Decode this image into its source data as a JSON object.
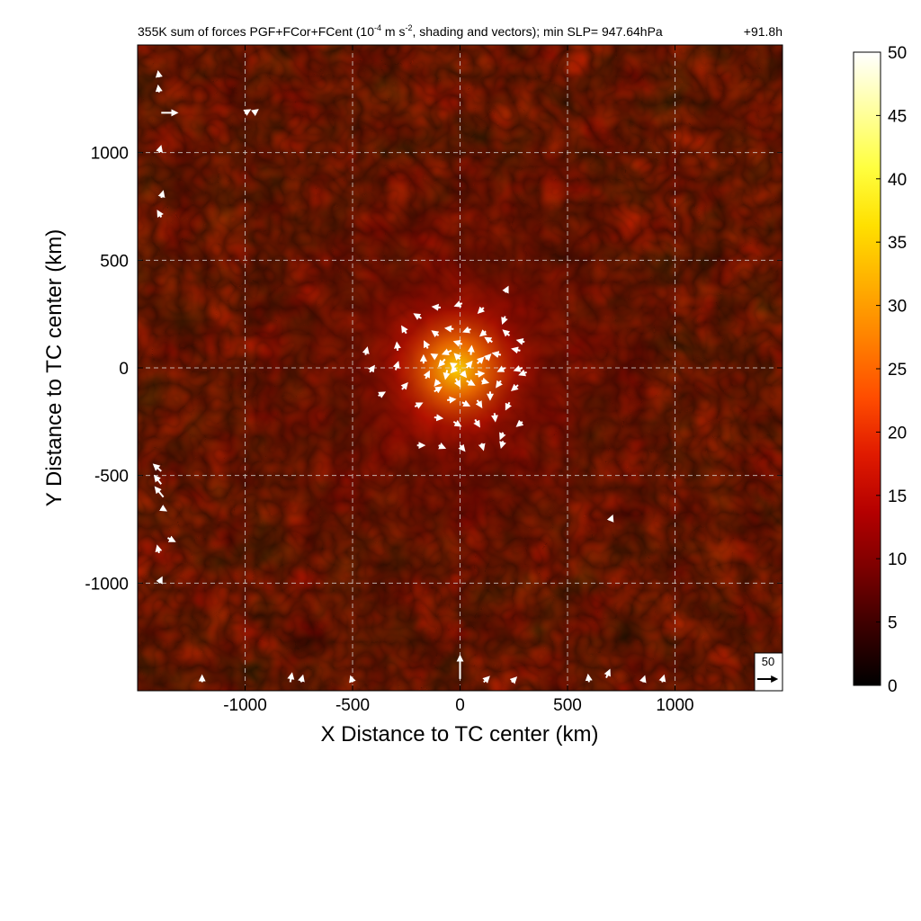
{
  "chart_data": {
    "type": "heatmap",
    "title": "355K sum of forces PGF+FCor+FCent (10",
    "title_exponent": "-4",
    "title_unit_rest": " m s",
    "title_unit_exponent": "-2",
    "title_tail": ", shading and vectors); min SLP= 947.64hPa",
    "time_label": "+91.8h",
    "xlabel": "X Distance to TC center (km)",
    "ylabel": "Y Distance to TC center (km)",
    "xlim": [
      -1500,
      1500
    ],
    "ylim": [
      -1500,
      1500
    ],
    "xticks": [
      -1000,
      -500,
      0,
      500,
      1000
    ],
    "xtick_labels": [
      "-1000",
      "-500",
      "0",
      "500",
      "1000"
    ],
    "yticks": [
      -1000,
      -500,
      0,
      500,
      1000
    ],
    "ytick_labels": [
      "-1000",
      "-500",
      "0",
      "500",
      "1000"
    ],
    "grid": true,
    "colorbar": {
      "range": [
        0,
        50
      ],
      "ticks": [
        0,
        5,
        10,
        15,
        20,
        25,
        30,
        35,
        40,
        45,
        50
      ],
      "tick_labels": [
        "0",
        "5",
        "10",
        "15",
        "20",
        "25",
        "30",
        "35",
        "40",
        "45",
        "50"
      ],
      "colormap": [
        "#000000",
        "#3a0000",
        "#7a0000",
        "#b40000",
        "#e01a00",
        "#ff4d00",
        "#ff8000",
        "#ffb000",
        "#ffe000",
        "#ffff40",
        "#ffffa0",
        "#ffffff"
      ]
    },
    "reference_vector": {
      "value": 50,
      "label": "50"
    },
    "vectors": [
      {
        "x": 10,
        "y": 110,
        "u": -18,
        "v": 6
      },
      {
        "x": -40,
        "y": 80,
        "u": -20,
        "v": -8
      },
      {
        "x": -70,
        "y": 40,
        "u": -14,
        "v": -16
      },
      {
        "x": -60,
        "y": -10,
        "u": -4,
        "v": -20
      },
      {
        "x": -20,
        "y": -50,
        "u": 10,
        "v": -18
      },
      {
        "x": 30,
        "y": -60,
        "u": 18,
        "v": -10
      },
      {
        "x": 70,
        "y": -30,
        "u": 20,
        "v": 2
      },
      {
        "x": 80,
        "y": 20,
        "u": 14,
        "v": 14
      },
      {
        "x": 50,
        "y": 60,
        "u": 2,
        "v": 20
      },
      {
        "x": 0,
        "y": 40,
        "u": -12,
        "v": 12
      },
      {
        "x": -20,
        "y": 0,
        "u": -10,
        "v": -10
      },
      {
        "x": 10,
        "y": -20,
        "u": 8,
        "v": -10
      },
      {
        "x": 150,
        "y": 120,
        "u": -16,
        "v": 10
      },
      {
        "x": 190,
        "y": 60,
        "u": -18,
        "v": 4
      },
      {
        "x": 210,
        "y": 0,
        "u": -16,
        "v": -8
      },
      {
        "x": 190,
        "y": -60,
        "u": -10,
        "v": -14
      },
      {
        "x": 140,
        "y": -110,
        "u": 0,
        "v": -18
      },
      {
        "x": 80,
        "y": -150,
        "u": 10,
        "v": -16
      },
      {
        "x": 10,
        "y": -160,
        "u": 16,
        "v": -8
      },
      {
        "x": -60,
        "y": -150,
        "u": 18,
        "v": 2
      },
      {
        "x": -120,
        "y": -110,
        "u": 16,
        "v": 10
      },
      {
        "x": -160,
        "y": -50,
        "u": 8,
        "v": 16
      },
      {
        "x": -170,
        "y": 20,
        "u": 0,
        "v": 18
      },
      {
        "x": -150,
        "y": 90,
        "u": -8,
        "v": 16
      },
      {
        "x": -100,
        "y": 150,
        "u": -14,
        "v": 10
      },
      {
        "x": -30,
        "y": 180,
        "u": -18,
        "v": 2
      },
      {
        "x": 50,
        "y": 180,
        "u": -16,
        "v": -6
      },
      {
        "x": 120,
        "y": 170,
        "u": -12,
        "v": -10
      },
      {
        "x": 230,
        "y": 150,
        "u": -14,
        "v": 12
      },
      {
        "x": 280,
        "y": 80,
        "u": -18,
        "v": 4
      },
      {
        "x": 290,
        "y": 0,
        "u": -18,
        "v": -6
      },
      {
        "x": 270,
        "y": -80,
        "u": -14,
        "v": -12
      },
      {
        "x": 230,
        "y": -160,
        "u": -8,
        "v": -16
      },
      {
        "x": 160,
        "y": -210,
        "u": 2,
        "v": -18
      },
      {
        "x": 70,
        "y": -240,
        "u": 10,
        "v": -16
      },
      {
        "x": -30,
        "y": -250,
        "u": 16,
        "v": -10
      },
      {
        "x": -120,
        "y": -230,
        "u": 18,
        "v": -2
      },
      {
        "x": -210,
        "y": -180,
        "u": 16,
        "v": 8
      },
      {
        "x": -270,
        "y": -100,
        "u": 12,
        "v": 14
      },
      {
        "x": -300,
        "y": -10,
        "u": 6,
        "v": 18
      },
      {
        "x": -290,
        "y": 80,
        "u": -2,
        "v": 18
      },
      {
        "x": -250,
        "y": 160,
        "u": -10,
        "v": 16
      },
      {
        "x": -180,
        "y": 230,
        "u": -16,
        "v": 10
      },
      {
        "x": -90,
        "y": 280,
        "u": -18,
        "v": 2
      },
      {
        "x": 10,
        "y": 300,
        "u": -16,
        "v": -6
      },
      {
        "x": 110,
        "y": 280,
        "u": -12,
        "v": -12
      },
      {
        "x": 210,
        "y": 240,
        "u": -6,
        "v": -16
      },
      {
        "x": 300,
        "y": 120,
        "u": -16,
        "v": 4
      },
      {
        "x": 310,
        "y": -20,
        "u": -16,
        "v": -6
      },
      {
        "x": 290,
        "y": -250,
        "u": -12,
        "v": -10
      },
      {
        "x": 200,
        "y": -300,
        "u": -6,
        "v": -14
      },
      {
        "x": 100,
        "y": -350,
        "u": 4,
        "v": -14
      },
      {
        "x": 0,
        "y": -360,
        "u": 10,
        "v": -12
      },
      {
        "x": -100,
        "y": -360,
        "u": 14,
        "v": -6
      },
      {
        "x": -200,
        "y": -360,
        "u": 16,
        "v": 0
      },
      {
        "x": -380,
        "y": -130,
        "u": 14,
        "v": 8
      },
      {
        "x": -420,
        "y": -20,
        "u": 10,
        "v": 14
      },
      {
        "x": -440,
        "y": 60,
        "u": 4,
        "v": 16
      },
      {
        "x": 200,
        "y": -340,
        "u": -4,
        "v": -14
      },
      {
        "x": 210,
        "y": 350,
        "u": 6,
        "v": 12
      },
      {
        "x": 30,
        "y": 0,
        "u": 12,
        "v": 14
      },
      {
        "x": -40,
        "y": 10,
        "u": 10,
        "v": 4
      },
      {
        "x": 120,
        "y": 40,
        "u": 10,
        "v": 10
      },
      {
        "x": 100,
        "y": -60,
        "u": 14,
        "v": -4
      },
      {
        "x": -100,
        "y": -60,
        "u": -8,
        "v": -10
      },
      {
        "x": -110,
        "y": 50,
        "u": -10,
        "v": 6
      },
      {
        "x": 0,
        "y": -1445,
        "u": 0,
        "v": 60
      },
      {
        "x": -1390,
        "y": 1185,
        "u": 40,
        "v": 0
      },
      {
        "x": 700,
        "y": -710,
        "u": 4,
        "v": 10
      },
      {
        "x": -1390,
        "y": -540,
        "u": -16,
        "v": 20
      },
      {
        "x": -1380,
        "y": -600,
        "u": -20,
        "v": 24
      },
      {
        "x": -1390,
        "y": -480,
        "u": -18,
        "v": 16
      },
      {
        "x": -1360,
        "y": -790,
        "u": 16,
        "v": -8
      },
      {
        "x": -1400,
        "y": -860,
        "u": -4,
        "v": 16
      },
      {
        "x": -1390,
        "y": -650,
        "u": 10,
        "v": -6
      },
      {
        "x": -1390,
        "y": 700,
        "u": -8,
        "v": 14
      },
      {
        "x": -1390,
        "y": 790,
        "u": 4,
        "v": 14
      },
      {
        "x": -1400,
        "y": 1280,
        "u": -2,
        "v": 14
      },
      {
        "x": -1400,
        "y": 1350,
        "u": -2,
        "v": 12
      },
      {
        "x": -1000,
        "y": 1185,
        "u": 10,
        "v": 6
      },
      {
        "x": -960,
        "y": 1185,
        "u": 8,
        "v": 6
      },
      {
        "x": -1200,
        "y": -1460,
        "u": 0,
        "v": 14
      },
      {
        "x": -790,
        "y": -1460,
        "u": 4,
        "v": 20
      },
      {
        "x": -740,
        "y": -1460,
        "u": 4,
        "v": 14
      },
      {
        "x": -500,
        "y": -1460,
        "u": -4,
        "v": 12
      },
      {
        "x": 110,
        "y": -1460,
        "u": 12,
        "v": 12
      },
      {
        "x": 240,
        "y": -1460,
        "u": 10,
        "v": 10
      },
      {
        "x": 600,
        "y": -1460,
        "u": -2,
        "v": 16
      },
      {
        "x": 680,
        "y": -1440,
        "u": 8,
        "v": 18
      },
      {
        "x": 850,
        "y": -1460,
        "u": 4,
        "v": 12
      },
      {
        "x": 940,
        "y": -1460,
        "u": 4,
        "v": 14
      },
      {
        "x": -1400,
        "y": -1000,
        "u": 6,
        "v": 12
      },
      {
        "x": -1400,
        "y": 1000,
        "u": 4,
        "v": 14
      }
    ]
  }
}
